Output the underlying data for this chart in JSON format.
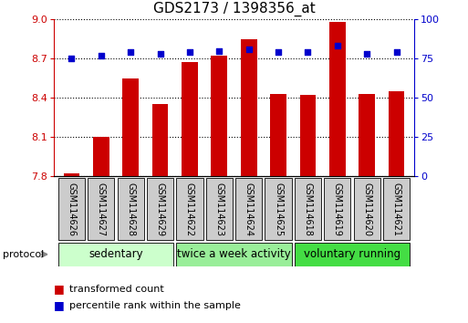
{
  "title": "GDS2173 / 1398356_at",
  "samples": [
    "GSM114626",
    "GSM114627",
    "GSM114628",
    "GSM114629",
    "GSM114622",
    "GSM114623",
    "GSM114624",
    "GSM114625",
    "GSM114618",
    "GSM114619",
    "GSM114620",
    "GSM114621"
  ],
  "transformed_count": [
    7.82,
    8.1,
    8.55,
    8.35,
    8.67,
    8.72,
    8.85,
    8.43,
    8.42,
    8.98,
    8.43,
    8.45
  ],
  "percentile_rank": [
    75,
    77,
    79,
    78,
    79,
    80,
    81,
    79,
    79,
    83,
    78,
    79
  ],
  "ylim_left": [
    7.8,
    9.0
  ],
  "ylim_right": [
    0,
    100
  ],
  "yticks_left": [
    7.8,
    8.1,
    8.4,
    8.7,
    9.0
  ],
  "yticks_right": [
    0,
    25,
    50,
    75,
    100
  ],
  "bar_color": "#cc0000",
  "dot_color": "#0000cc",
  "bar_bottom": 7.8,
  "groups": [
    {
      "label": "sedentary",
      "start": 0,
      "end": 3,
      "color": "#ccffcc"
    },
    {
      "label": "twice a week activity",
      "start": 4,
      "end": 7,
      "color": "#99ee99"
    },
    {
      "label": "voluntary running",
      "start": 8,
      "end": 11,
      "color": "#44dd44"
    }
  ],
  "protocol_label": "protocol",
  "legend_bar_label": "transformed count",
  "legend_dot_label": "percentile rank within the sample",
  "sample_box_color": "#cccccc",
  "title_fontsize": 11,
  "tick_fontsize": 8,
  "sample_fontsize": 7,
  "group_fontsize": 8.5
}
